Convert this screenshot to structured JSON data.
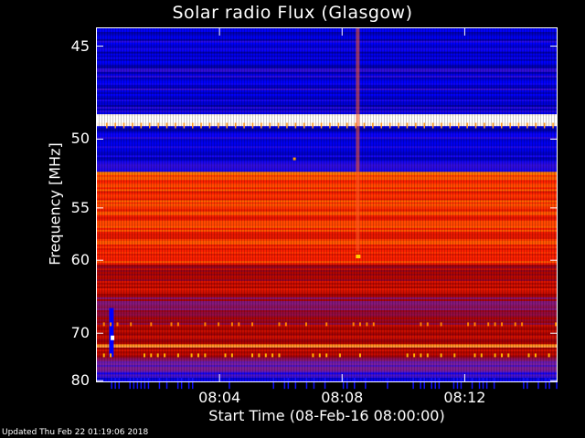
{
  "chart_data": {
    "type": "heatmap",
    "title": "Solar radio Flux (Glasgow)",
    "xlabel": "Start Time (08-Feb-16 08:00:00)",
    "ylabel": "Frequency [MHz]",
    "x_ticks": [
      "08:04",
      "08:08",
      "08:12"
    ],
    "x_tick_minutes": [
      4,
      8,
      12
    ],
    "x_range_minutes": [
      0,
      15
    ],
    "y_ticks": [
      45,
      50,
      55,
      60,
      70,
      80
    ],
    "y_range_mhz": [
      44.2,
      80.2
    ],
    "colormap": [
      "#000066",
      "#0000ff",
      "#7a1fa0",
      "#a00000",
      "#ff2000",
      "#ff8000",
      "#ffffff"
    ],
    "bands": [
      {
        "f0": 44.2,
        "f1": 45.0,
        "level": 0.15
      },
      {
        "f0": 45.0,
        "f1": 48.5,
        "level": 0.15
      },
      {
        "f0": 48.5,
        "f1": 49.2,
        "level": 1.0
      },
      {
        "f0": 49.2,
        "f1": 52.2,
        "level": 0.15
      },
      {
        "f0": 52.2,
        "f1": 52.8,
        "level": 0.8
      },
      {
        "f0": 52.8,
        "f1": 60.5,
        "level": 0.7
      },
      {
        "f0": 60.5,
        "f1": 64.5,
        "level": 0.55
      },
      {
        "f0": 64.5,
        "f1": 68.0,
        "level": 0.45
      },
      {
        "f0": 68.0,
        "f1": 72.0,
        "level": 0.5
      },
      {
        "f0": 72.0,
        "f1": 72.6,
        "level": 0.8
      },
      {
        "f0": 72.6,
        "f1": 75.0,
        "level": 0.5
      },
      {
        "f0": 75.0,
        "f1": 78.0,
        "level": 0.3
      },
      {
        "f0": 78.0,
        "f1": 80.2,
        "level": 0.2
      }
    ]
  },
  "footer": {
    "updated": "Updated Thu Feb 22 01:19:06 2018"
  }
}
